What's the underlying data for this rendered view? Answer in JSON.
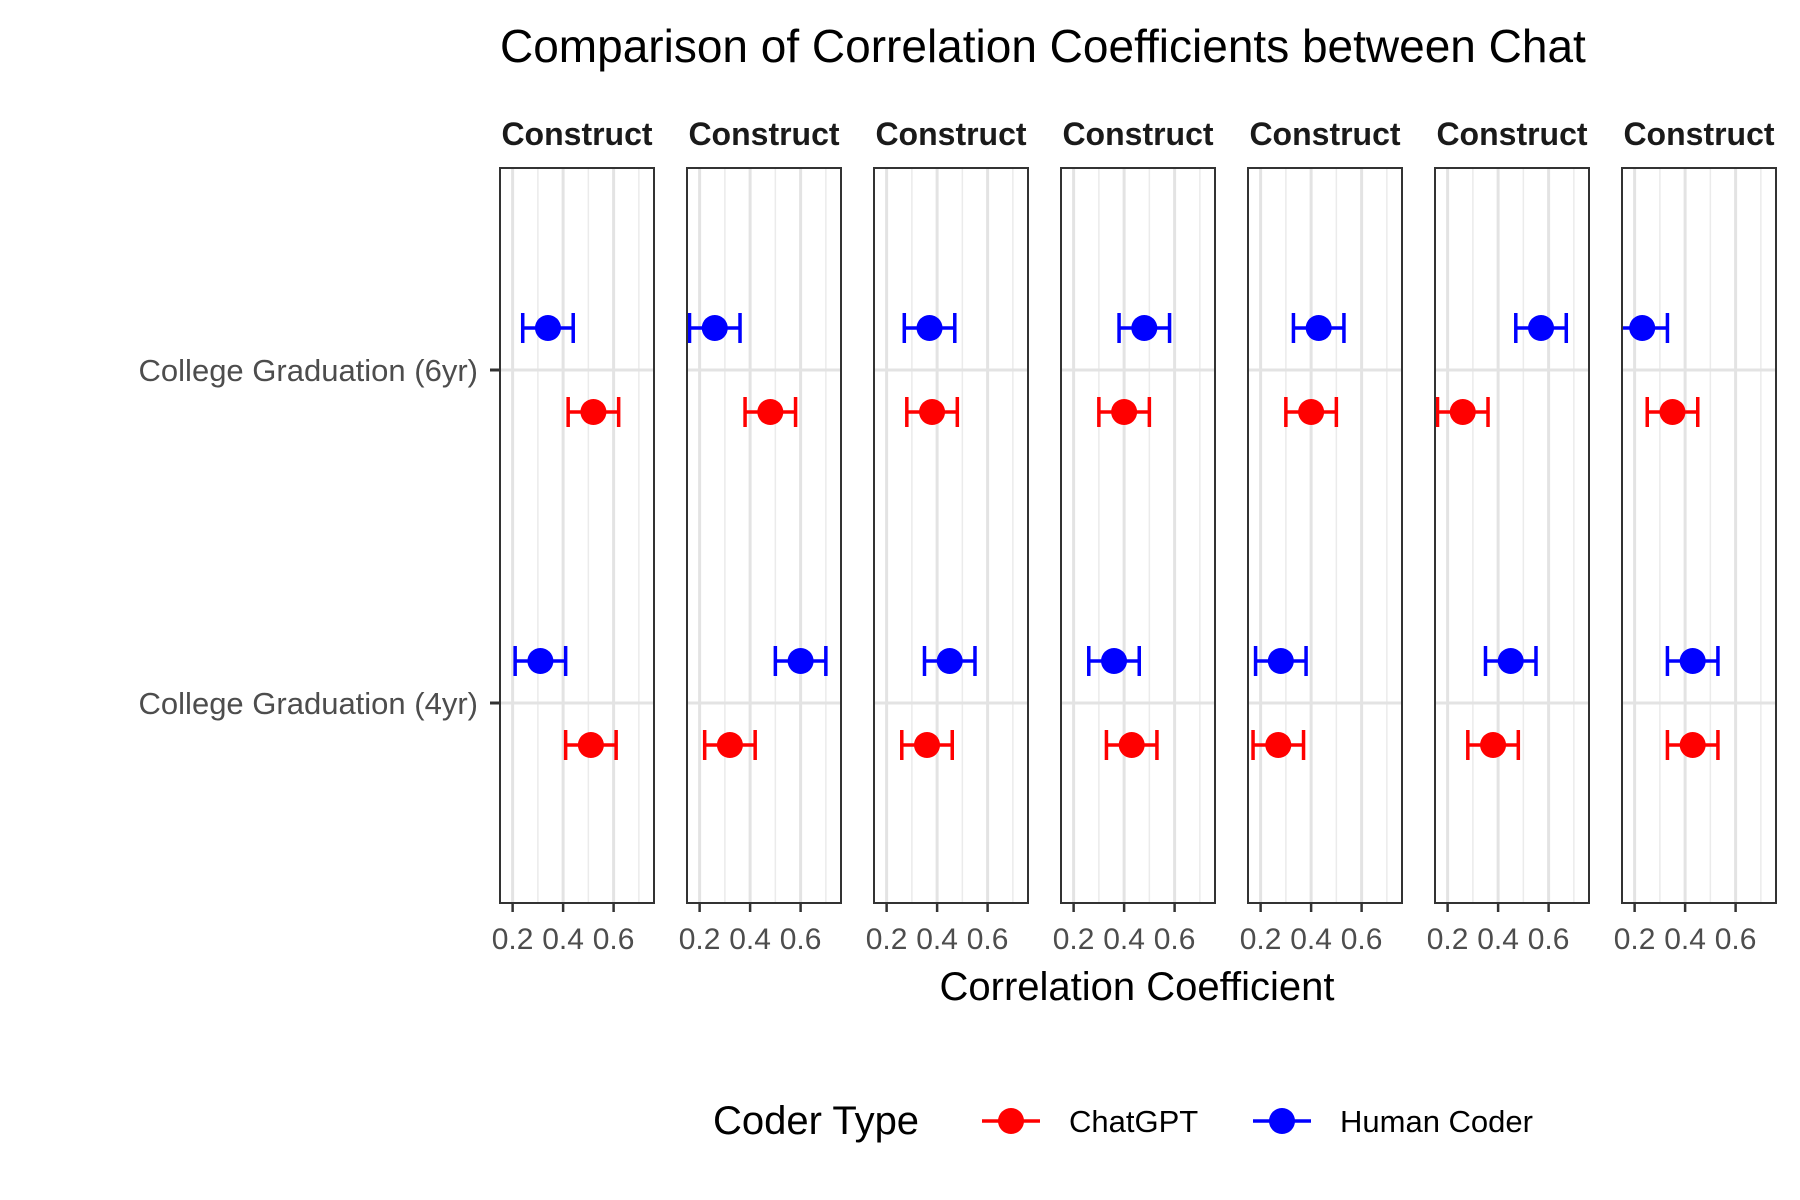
{
  "chart_data": {
    "type": "scatter",
    "title": "Comparison of Correlation Coefficients between Chat",
    "xlabel": "Correlation Coefficient",
    "ylabel": "",
    "facet_label": "Construct",
    "categories": [
      "College Graduation (6yr)",
      "College Graduation (4yr)"
    ],
    "xlim": [
      0.15,
      0.76
    ],
    "x_ticks": [
      0.2,
      0.4,
      0.6
    ],
    "x_tick_labels": [
      "0.2",
      "0.4",
      "0.6"
    ],
    "grid": true,
    "legend": {
      "title": "Coder Type",
      "position": "bottom",
      "entries": [
        {
          "name": "ChatGPT",
          "color": "#ff0000"
        },
        {
          "name": "Human Coder",
          "color": "#0000ff"
        }
      ]
    },
    "ci_halfwidth": 0.1,
    "panels": [
      {
        "ChatGPT": [
          0.52,
          0.51
        ],
        "Human Coder": [
          0.34,
          0.31
        ]
      },
      {
        "ChatGPT": [
          0.48,
          0.32
        ],
        "Human Coder": [
          0.26,
          0.6
        ]
      },
      {
        "ChatGPT": [
          0.38,
          0.36
        ],
        "Human Coder": [
          0.37,
          0.45
        ]
      },
      {
        "ChatGPT": [
          0.4,
          0.43
        ],
        "Human Coder": [
          0.48,
          0.36
        ]
      },
      {
        "ChatGPT": [
          0.4,
          0.27
        ],
        "Human Coder": [
          0.43,
          0.28
        ]
      },
      {
        "ChatGPT": [
          0.26,
          0.38
        ],
        "Human Coder": [
          0.57,
          0.45
        ]
      },
      {
        "ChatGPT": [
          0.35,
          0.43
        ],
        "Human Coder": [
          0.23,
          0.43
        ]
      }
    ]
  }
}
